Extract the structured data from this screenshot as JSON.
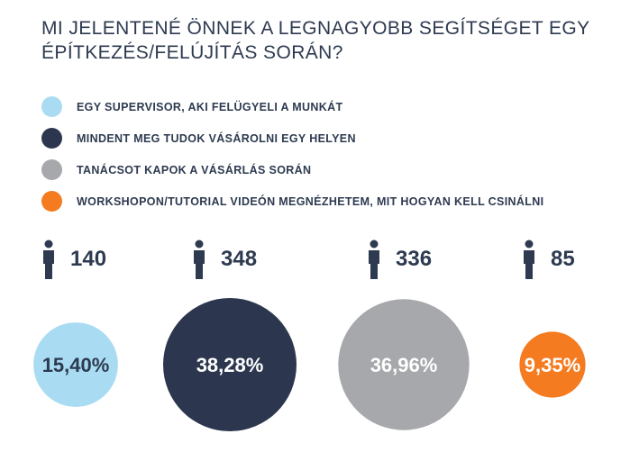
{
  "title_line1": "MI JELENTENÉ ÖNNEK A LEGNAGYOBB SEGÍTSÉGET EGY",
  "title_line2": "ÉPÍTKEZÉS/FELÚJÍTÁS SORÁN?",
  "colors": {
    "light_blue": "#a9dcf3",
    "navy": "#2c374f",
    "gray": "#a6a8ab",
    "orange": "#f47b20",
    "text": "#2d3a50"
  },
  "chart_data": {
    "type": "bubble",
    "title": "MI JELENTENÉ ÖNNEK A LEGNAGYOBB SEGÍTSÉGET EGY ÉPÍTKEZÉS/FELÚJÍTÁS SORÁN?",
    "categories": [
      "EGY SUPERVISOR, AKI FELÜGYELI A MUNKÁT",
      "MINDENT MEG TUDOK VÁSÁROLNI EGY HELYEN",
      "TANÁCSOT KAPOK A VÁSÁRLÁS SORÁN",
      "WORKSHOPON/TUTORIAL VIDEÓN MEGNÉZHETEM, MIT HOGYAN KELL CSINÁLNI"
    ],
    "counts": [
      140,
      348,
      336,
      85
    ],
    "percent_values": [
      15.4,
      38.28,
      36.96,
      9.35
    ],
    "percent_labels": [
      "15,40%",
      "38,28%",
      "36,96%",
      "9,35%"
    ],
    "series_colors": [
      "#a9dcf3",
      "#2c374f",
      "#a6a8ab",
      "#f47b20"
    ],
    "label_colors": [
      "#2d3a50",
      "#ffffff",
      "#ffffff",
      "#ffffff"
    ],
    "legend_position": "top-left"
  }
}
